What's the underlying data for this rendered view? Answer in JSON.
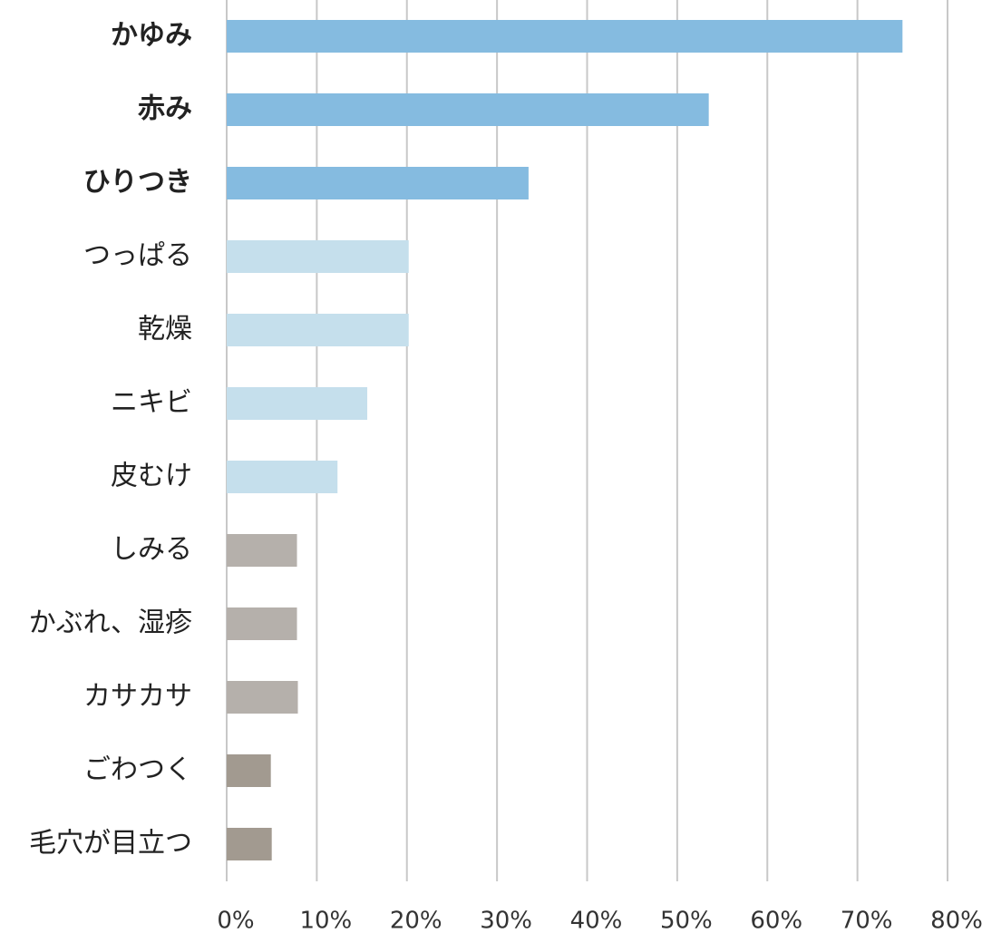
{
  "chart_data": {
    "type": "bar",
    "orientation": "horizontal",
    "categories": [
      "かゆみ",
      "赤み",
      "ひりつき",
      "つっぱる",
      "乾燥",
      "ニキビ",
      "皮むけ",
      "しみる",
      "かぶれ、湿疹",
      "カサカサ",
      "ごわつく",
      "毛穴が目立つ"
    ],
    "values": [
      75,
      53.5,
      33.5,
      20.2,
      20.2,
      15.6,
      12.3,
      7.8,
      7.8,
      7.9,
      4.9,
      5
    ],
    "colors": [
      "#85bbe0",
      "#85bbe0",
      "#85bbe0",
      "#c5dfec",
      "#c5dfec",
      "#c5dfec",
      "#c5dfec",
      "#b5b0ab",
      "#b5b0ab",
      "#b5b0ab",
      "#a29a90",
      "#a29a90"
    ],
    "bold_categories": [
      0,
      1,
      2
    ],
    "xlim": [
      0,
      80
    ],
    "xticks": [
      {
        "value": 0,
        "label": "0%"
      },
      {
        "value": 10,
        "label": "10%"
      },
      {
        "value": 20,
        "label": "20%"
      },
      {
        "value": 30,
        "label": "30%"
      },
      {
        "value": 40,
        "label": "40%"
      },
      {
        "value": 50,
        "label": "50%"
      },
      {
        "value": 60,
        "label": "60%"
      },
      {
        "value": 70,
        "label": "70%"
      },
      {
        "value": 80,
        "label": "80%"
      }
    ],
    "grid": true
  }
}
